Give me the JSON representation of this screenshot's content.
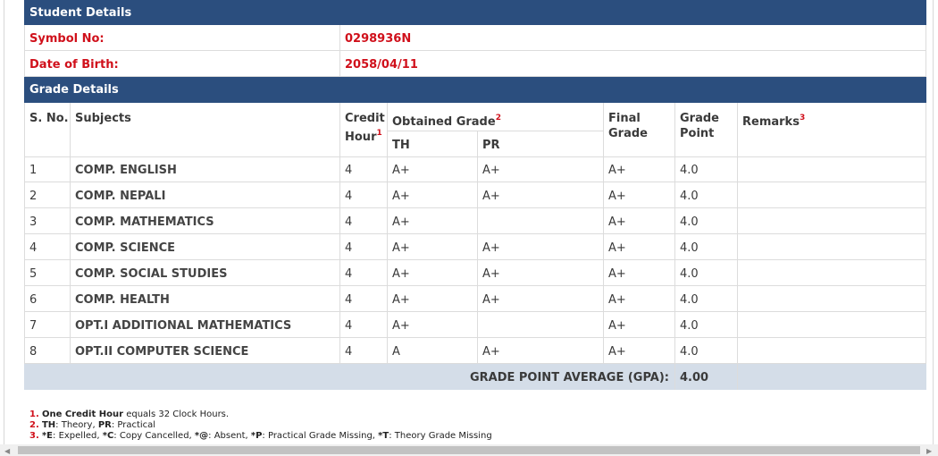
{
  "student_details": {
    "title": "Student Details",
    "rows": [
      {
        "label": "Symbol No:",
        "value": "0298936N"
      },
      {
        "label": "Date of Birth:",
        "value": "2058/04/11"
      }
    ]
  },
  "grade_details": {
    "title": "Grade Details",
    "headers": {
      "sn": "S. No.",
      "subject": "Subjects",
      "credit_hour": "Credit Hour",
      "credit_hour_note": "1",
      "obtained_grade": "Obtained Grade",
      "obtained_grade_note": "2",
      "th": "TH",
      "pr": "PR",
      "final": "Final Grade",
      "grade_point": "Grade Point",
      "remarks": "Remarks",
      "remarks_note": "3"
    },
    "rows": [
      {
        "sn": "1",
        "subject": "COMP. ENGLISH",
        "credit_hour": "4",
        "th": "A+",
        "pr": "A+",
        "final": "A+",
        "grade_point": "4.0"
      },
      {
        "sn": "2",
        "subject": "COMP. NEPALI",
        "credit_hour": "4",
        "th": "A+",
        "pr": "A+",
        "final": "A+",
        "grade_point": "4.0"
      },
      {
        "sn": "3",
        "subject": "COMP. MATHEMATICS",
        "credit_hour": "4",
        "th": "A+",
        "final": "A+",
        "grade_point": "4.0"
      },
      {
        "sn": "4",
        "subject": "COMP. SCIENCE",
        "credit_hour": "4",
        "th": "A+",
        "pr": "A+",
        "final": "A+",
        "grade_point": "4.0"
      },
      {
        "sn": "5",
        "subject": "COMP. SOCIAL STUDIES",
        "credit_hour": "4",
        "th": "A+",
        "pr": "A+",
        "final": "A+",
        "grade_point": "4.0"
      },
      {
        "sn": "6",
        "subject": "COMP. HEALTH",
        "credit_hour": "4",
        "th": "A+",
        "pr": "A+",
        "final": "A+",
        "grade_point": "4.0"
      },
      {
        "sn": "7",
        "subject": "OPT.I ADDITIONAL MATHEMATICS",
        "credit_hour": "4",
        "th": "A+",
        "final": "A+",
        "grade_point": "4.0"
      },
      {
        "sn": "8",
        "subject": "OPT.II COMPUTER SCIENCE",
        "credit_hour": "4",
        "th": "A",
        "pr": "A+",
        "final": "A+",
        "grade_point": "4.0"
      }
    ],
    "gpa": {
      "label": "GRADE POINT AVERAGE (GPA):",
      "value": "4.00"
    }
  },
  "footnotes": [
    {
      "marker": "1.",
      "parts": [
        {
          "text": "One Credit Hour",
          "bold": true
        },
        {
          "text": " equals 32 Clock Hours."
        }
      ]
    },
    {
      "marker": "2.",
      "parts": [
        {
          "text": "TH",
          "bold": true
        },
        {
          "text": ": Theory, "
        },
        {
          "text": "PR",
          "bold": true
        },
        {
          "text": ": Practical"
        }
      ]
    },
    {
      "marker": "3.",
      "parts": [
        {
          "text": "*E",
          "bold": true
        },
        {
          "text": ": Expelled, "
        },
        {
          "text": "*C",
          "bold": true
        },
        {
          "text": ": Copy Cancelled, "
        },
        {
          "text": "*@",
          "bold": true
        },
        {
          "text": ": Absent, "
        },
        {
          "text": "*P",
          "bold": true
        },
        {
          "text": ": Practical Grade Missing, "
        },
        {
          "text": "*T",
          "bold": true
        },
        {
          "text": ": Theory Grade Missing"
        }
      ]
    }
  ]
}
